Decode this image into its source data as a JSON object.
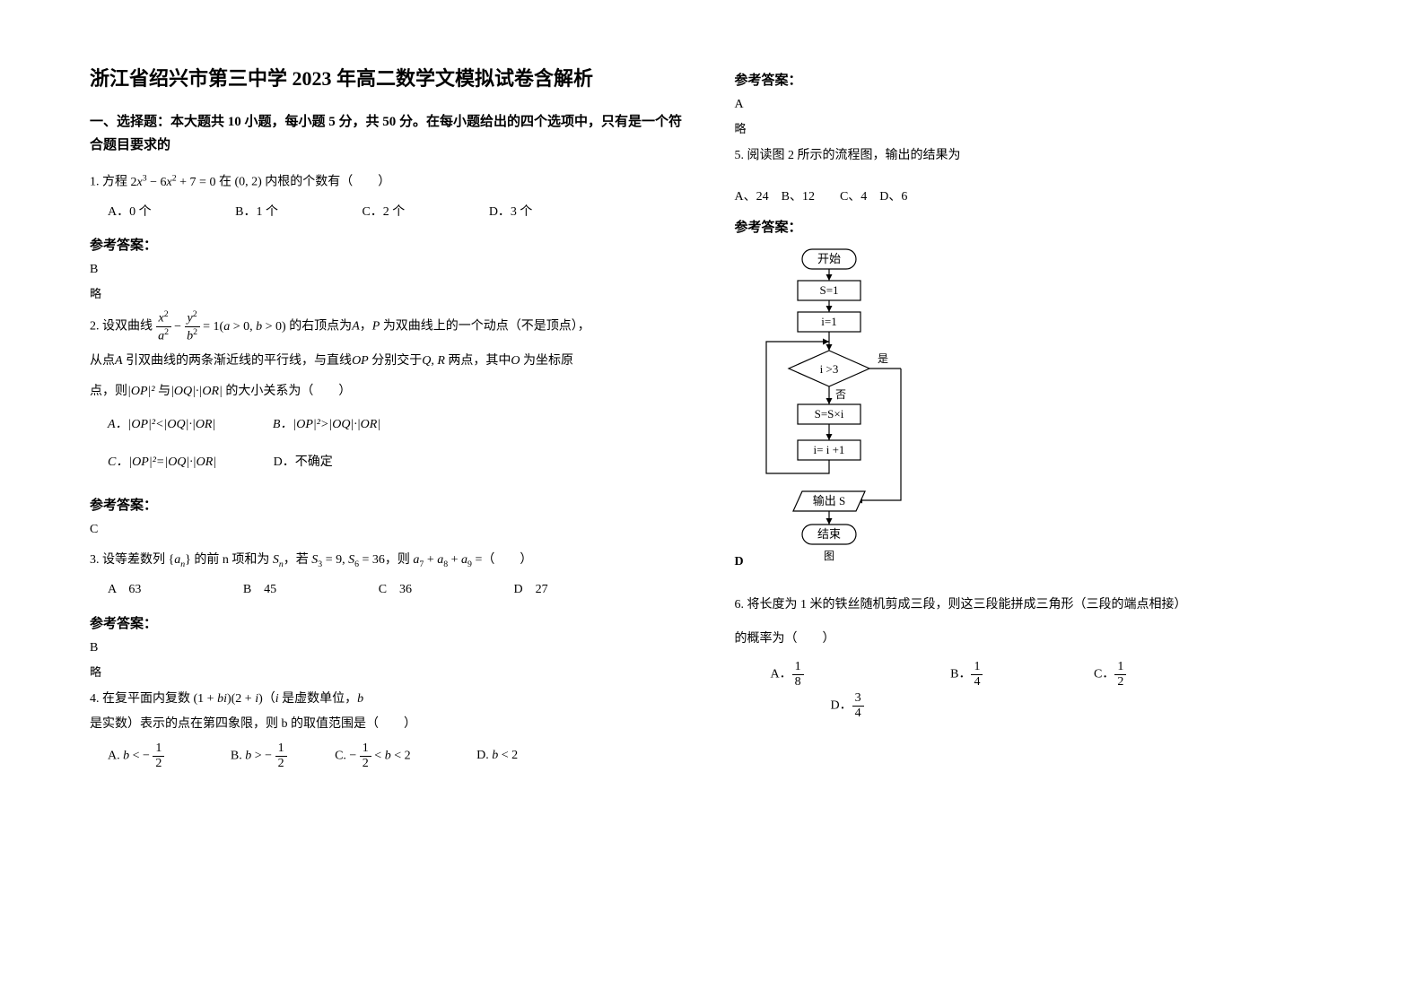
{
  "title": "浙江省绍兴市第三中学 2023 年高二数学文模拟试卷含解析",
  "section1_header": "一、选择题：本大题共 10 小题，每小题 5 分，共 50 分。在每小题给出的四个选项中，只有是一个符合题目要求的",
  "q1": {
    "prefix": "1. 方程",
    "expr_html": "2<span class='italic'>x</span><sup>3</sup> − 6<span class='italic'>x</span><sup>2</sup> + 7 = 0",
    "mid": "在",
    "interval": "(0, 2)",
    "suffix": "内根的个数有（　　）",
    "opts": {
      "A": "A．0 个",
      "B": "B．1 个",
      "C": "C．2 个",
      "D": "D．3 个"
    }
  },
  "answer_label": "参考答案：",
  "q1_ans": "B",
  "q1_note": "略",
  "q2": {
    "prefix": "2. 设双曲线",
    "expr_html": "<span class='frac'><span class='n'><span class='italic'>x</span><sup>2</sup></span><span class='d'><span class='italic'>a</span><sup>2</sup></span></span> − <span class='frac'><span class='n'><span class='italic'>y</span><sup>2</sup></span><span class='d'><span class='italic'>b</span><sup>2</sup></span></span> = 1(<span class='italic'>a</span> > 0, <span class='italic'>b</span> > 0)",
    "mid1": "的右顶点为",
    "A": "A",
    "mid2": "，",
    "P": "P",
    "mid3": "为双曲线上的一个动点（不是顶点），",
    "line2a": "从点",
    "line2b": "引双曲线的两条渐近线的平行线，与直线",
    "OP": "OP",
    "line2c": "分别交于",
    "QR": "Q, R",
    "line2d": "两点，其中",
    "O": "O",
    "line2e": "为坐标原",
    "line3a": "点，则",
    "abs1": "|OP|²",
    "line3b": "与",
    "abs2": "|OQ|·|OR|",
    "line3c": "的大小关系为（　　）",
    "opts": {
      "A": "A．|OP|²<|OQ|·|OR|",
      "B": "B．|OP|²>|OQ|·|OR|",
      "C": "C．|OP|²=|OQ|·|OR|",
      "D": "D．不确定"
    }
  },
  "q2_ans": "C",
  "q3": {
    "text_html": "3. 设等差数列 {<span class='italic'>a<sub>n</sub></span>} 的前 n 项和为 <span class='italic'>S<sub>n</sub></span>，若 <span class='italic'>S</span><sub>3</sub> = 9, <span class='italic'>S</span><sub>6</sub> = 36，则 <span class='italic'>a</span><sub>7</sub> + <span class='italic'>a</span><sub>8</sub> + <span class='italic'>a</span><sub>9</sub> =（　　）",
    "opts": {
      "A": "A　63",
      "B": "B　45",
      "C": "C　36",
      "D": "D　27"
    }
  },
  "q3_ans": "B",
  "q3_note": "略",
  "q4": {
    "text_html": "4. 在复平面内复数 (1 + <span class='italic'>bi</span>)(2 + <span class='italic'>i</span>)（<span class='italic'>i</span> 是虚数单位，<span class='italic'>b</span> 是实数）表示的点在第四象限，则 b 的取值范围是（　　）",
    "opts": {
      "A_html": "A. <span class='italic'>b</span> < − <span class='frac'><span class='n'>1</span><span class='d'>2</span></span>",
      "B_html": "B. <span class='italic'>b</span> > − <span class='frac'><span class='n'>1</span><span class='d'>2</span></span>",
      "C_html": "C. − <span class='frac'><span class='n'>1</span><span class='d'>2</span></span> < <span class='italic'>b</span> < 2",
      "D_html": "D. <span class='italic'>b</span> < 2"
    }
  },
  "q4_ans": "A",
  "q4_note": "略",
  "q5": {
    "text": "5. 阅读图 2 所示的流程图，输出的结果为",
    "opts": "A、24　B、12　　C、4　D、6"
  },
  "flow": {
    "start": "开始",
    "s1": "S=1",
    "i1": "i=1",
    "cond": "i >3",
    "yes": "是",
    "no": "否",
    "mul": "S=S×i",
    "inc": "i= i +1",
    "out": "输出 S",
    "end": "结束",
    "caption": "图"
  },
  "q5_ans": "D",
  "q6": {
    "line1": "6. 将长度为 1 米的铁丝随机剪成三段，则这三段能拼成三角形（三段的端点相接）",
    "line2": "的概率为（　　）",
    "opts": {
      "A_html": "A．<span class='frac'><span class='n'>1</span><span class='d'>8</span></span>",
      "B_html": "B．<span class='frac'><span class='n'>1</span><span class='d'>4</span></span>",
      "C_html": "C．<span class='frac'><span class='n'>1</span><span class='d'>2</span></span>",
      "D_html": "D．<span class='frac'><span class='n'>3</span><span class='d'>4</span></span>"
    }
  },
  "colors": {
    "text": "#000000",
    "bg": "#ffffff",
    "stroke": "#000000"
  }
}
